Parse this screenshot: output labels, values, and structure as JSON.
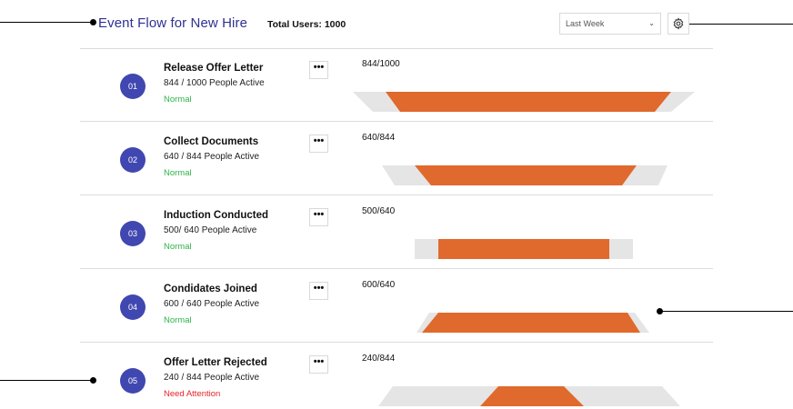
{
  "header": {
    "title": "Event Flow for New Hire",
    "total_users": "Total Users: 1000",
    "period_select": {
      "selected": "Last Week",
      "options": [
        "Last Week"
      ]
    },
    "settings_icon": "gear-icon"
  },
  "colors": {
    "title": "#2e3192",
    "badge": "#4147b0",
    "active_bar": "#e0692d",
    "total_bar": "#e5e5e5",
    "status_ok": "#2db34a",
    "status_warn": "#e8232a"
  },
  "steps": [
    {
      "number": "01",
      "title": "Release Offer Letter",
      "subtitle": "844 / 1000 People Active",
      "status": "Normal",
      "ratio": "844/1000",
      "active": 844,
      "total": 1000
    },
    {
      "number": "02",
      "title": "Collect Documents",
      "subtitle": "640 / 844 People Active",
      "status": "Normal",
      "ratio": "640/844",
      "active": 640,
      "total": 844
    },
    {
      "number": "03",
      "title": "Induction Conducted",
      "subtitle": "500/ 640 People Active",
      "status": "Normal",
      "ratio": "500/640",
      "active": 500,
      "total": 640
    },
    {
      "number": "04",
      "title": "Condidates Joined",
      "subtitle": "600 / 640 People Active",
      "status": "Normal",
      "ratio": "600/640",
      "active": 600,
      "total": 640
    },
    {
      "number": "05",
      "title": "Offer Letter Rejected",
      "subtitle": "240 / 844 People Active",
      "status": "Need Attention",
      "ratio": "240/844",
      "active": 240,
      "total": 844
    }
  ]
}
